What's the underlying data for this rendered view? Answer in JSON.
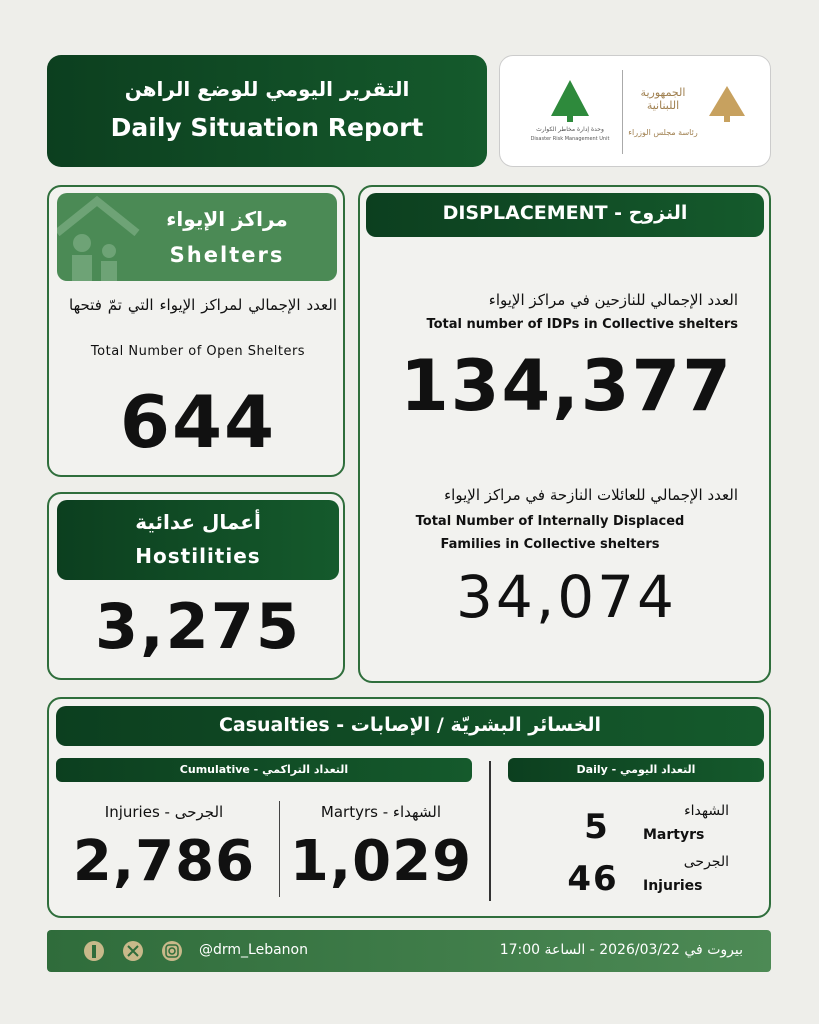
{
  "header": {
    "title_ar": "التقرير اليومي للوضع الراهن",
    "title_en": "Daily Situation Report"
  },
  "logos": {
    "drm_ar": "وحدة إدارة مخاطر الكوارث",
    "drm_en": "Disaster Risk Management Unit",
    "republic_ar": "الجمهورية اللبنانية",
    "pm_ar": "رئاسة مجلس الوزراء"
  },
  "shelters": {
    "title_ar": "مراكز الإيواء",
    "title_en": "Shelters",
    "label_ar": "العدد الإجمالي لمراكز الإيواء التي تمّ فتحها",
    "label_en": "Total Number of Open Shelters",
    "value": "644"
  },
  "hostilities": {
    "title_ar": "أعمال عدائية",
    "title_en": "Hostilities",
    "value": "3,275"
  },
  "displacement": {
    "title": "DISPLACEMENT - النزوح",
    "idps": {
      "label_ar": "العدد الإجمالي للنازحين في مراكز الإيواء",
      "label_en": "Total number of IDPs in Collective shelters",
      "value": "134,377"
    },
    "families": {
      "label_ar": "العدد الإجمالي للعائلات النازحة في مراكز الإيواء",
      "label_en": "Total Number of Internally Displaced Families in Collective shelters",
      "value": "34,074"
    }
  },
  "casualties": {
    "title": "Casualties - الخسائر البشريّة / الإصابات",
    "cumulative": {
      "title": "Cumulative - التعداد التراكمي",
      "injuries_label": "Injuries - الجرحى",
      "injuries": "2,786",
      "martyrs_label": "Martyrs - الشهداء",
      "martyrs": "1,029"
    },
    "daily": {
      "title": "Daily - التعداد اليومي",
      "martyrs_ar": "الشهداء",
      "martyrs_en": "Martyrs",
      "martyrs": "5",
      "injuries_ar": "الجرحى",
      "injuries_en": "Injuries",
      "injuries": "46"
    }
  },
  "footer": {
    "handle": "@drm_Lebanon",
    "datetime": "بيروت في 2026/03/22 - الساعة 17:00"
  }
}
